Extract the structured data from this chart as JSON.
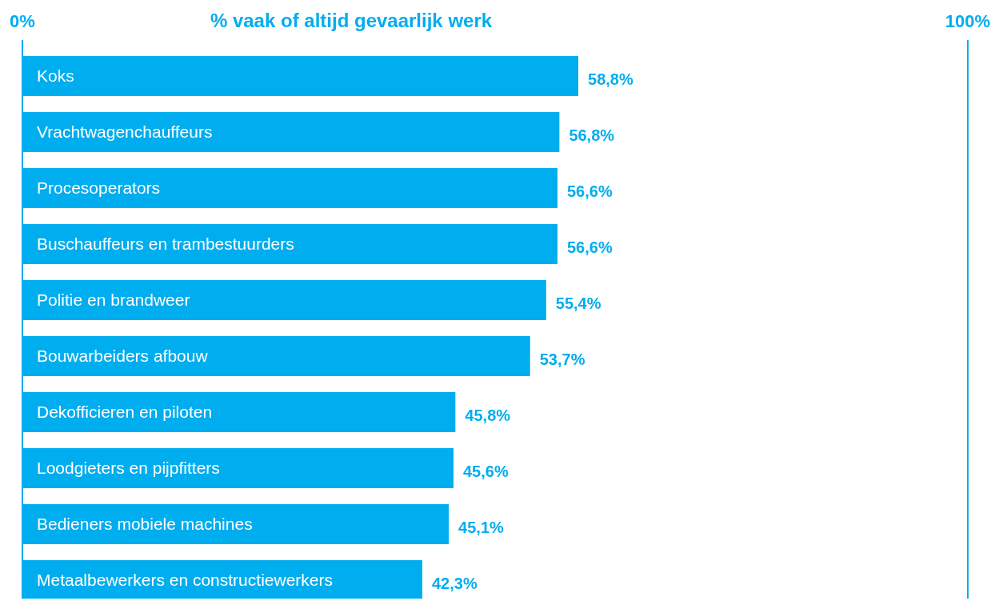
{
  "chart_data": {
    "type": "bar",
    "orientation": "horizontal",
    "title": "% vaak of altijd gevaarlijk werk",
    "categories": [
      "Koks",
      "Vrachtwagenchauffeurs",
      "Procesoperators",
      "Buschauffeurs en trambestuurders",
      "Politie en brandweer",
      "Bouwarbeiders afbouw",
      "Dekofficieren en piloten",
      "Loodgieters en pijpfitters",
      "Bedieners mobiele machines",
      "Metaalbewerkers en constructiewerkers"
    ],
    "values": [
      58.8,
      56.8,
      56.6,
      56.6,
      55.4,
      53.7,
      45.8,
      45.6,
      45.1,
      42.3
    ],
    "value_labels": [
      "58,8%",
      "56,8%",
      "56,6%",
      "56,6%",
      "55,4%",
      "53,7%",
      "45,8%",
      "45,6%",
      "45,1%",
      "42,3%"
    ],
    "color": "#00adef",
    "xlim": [
      0,
      100
    ],
    "xticks": [
      {
        "value": 0,
        "label": "0%"
      },
      {
        "value": 100,
        "label": "100%"
      }
    ],
    "grid": false
  }
}
